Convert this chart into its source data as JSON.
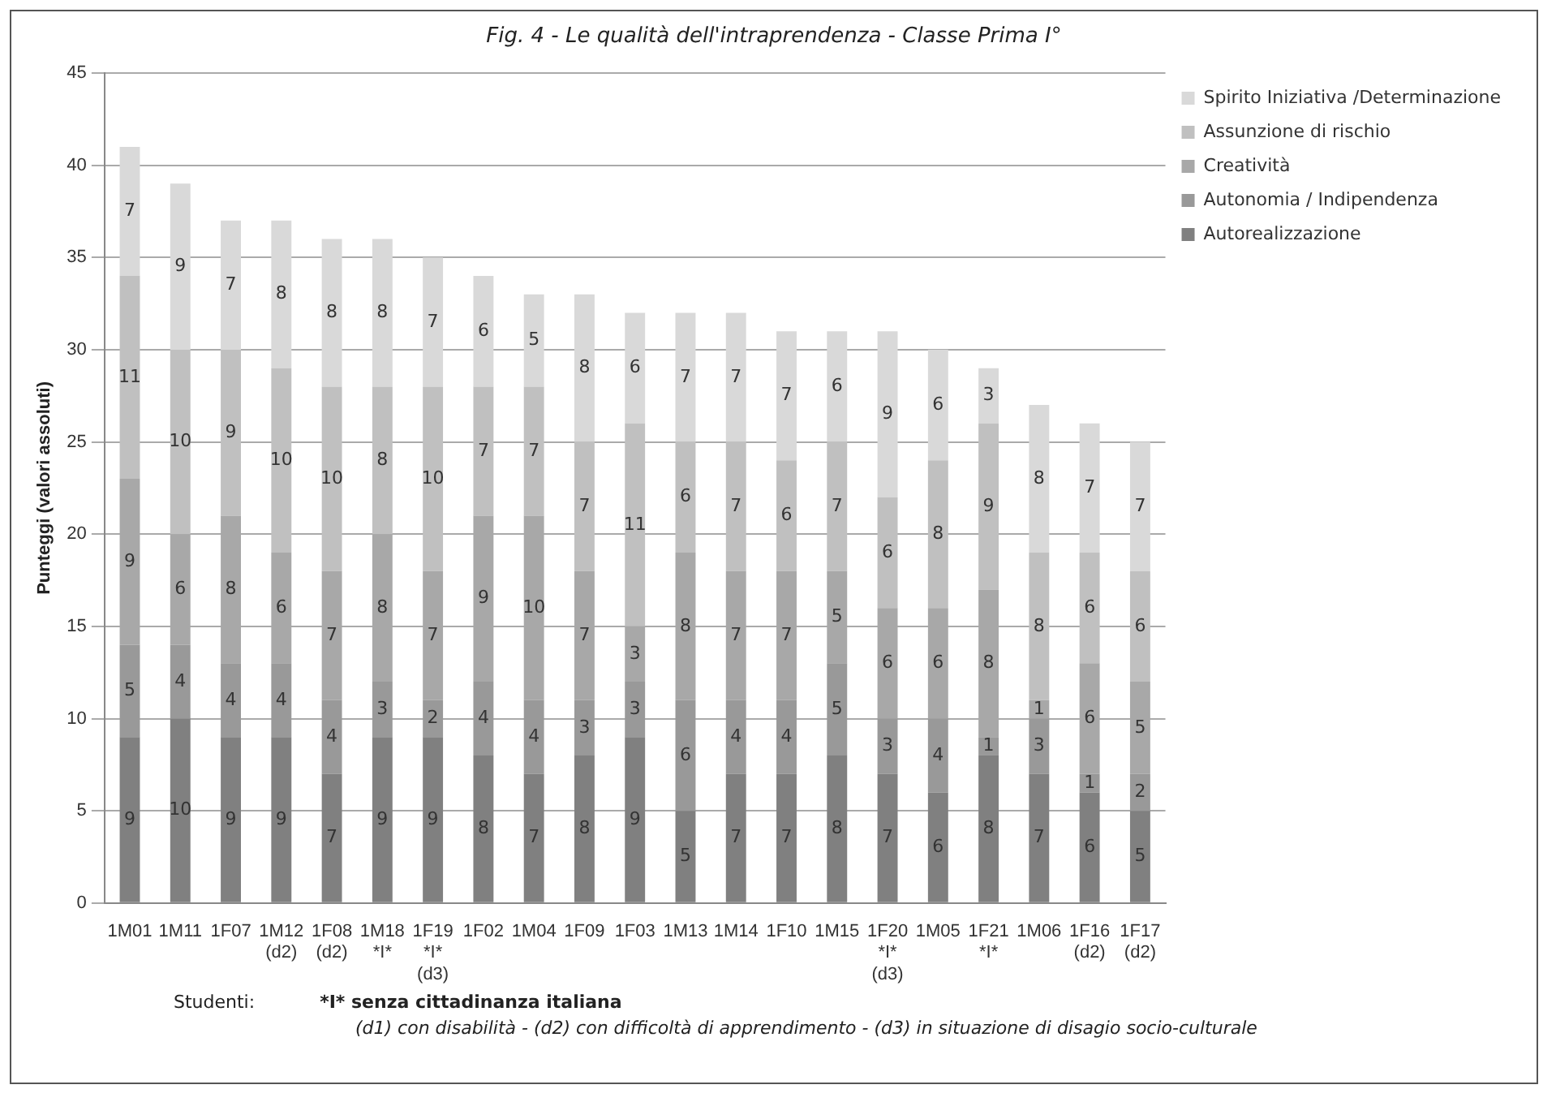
{
  "chart_data": {
    "type": "bar",
    "stacked": true,
    "title": "Fig. 4 - Le qualità dell'intraprendenza  - Classe Prima I°",
    "ylabel": "Punteggi (valori assoluti)",
    "categories": [
      "1M01",
      "1M11",
      "1F07",
      "1M12\n(d2)",
      "1F08\n(d2)",
      "1M18\n*I*",
      "1F19\n*I*\n(d3)",
      "1F02",
      "1M04",
      "1F09",
      "1F03",
      "1M13",
      "1M14",
      "1F10",
      "1M15",
      "1F20\n*I*\n(d3)",
      "1M05",
      "1F21\n*I*",
      "1M06",
      "1F16\n(d2)",
      "1F17\n(d2)"
    ],
    "series": [
      {
        "name": "Autorealizzazione",
        "color": "#808080",
        "values": [
          9,
          10,
          9,
          9,
          7,
          9,
          9,
          8,
          7,
          8,
          9,
          5,
          7,
          7,
          8,
          7,
          6,
          8,
          7,
          6,
          5
        ]
      },
      {
        "name": "Autonomia / Indipendenza",
        "color": "#999999",
        "values": [
          5,
          4,
          4,
          4,
          4,
          3,
          2,
          4,
          4,
          3,
          3,
          6,
          4,
          4,
          5,
          3,
          4,
          1,
          3,
          1,
          2
        ]
      },
      {
        "name": "Creatività",
        "color": "#a8a8a8",
        "values": [
          9,
          6,
          8,
          6,
          7,
          8,
          7,
          9,
          10,
          7,
          3,
          8,
          7,
          7,
          5,
          6,
          6,
          8,
          1,
          6,
          5
        ]
      },
      {
        "name": "Assunzione di rischio",
        "color": "#c0c0c0",
        "values": [
          11,
          10,
          9,
          10,
          10,
          8,
          10,
          7,
          7,
          7,
          11,
          6,
          7,
          6,
          7,
          6,
          8,
          9,
          8,
          6,
          6
        ]
      },
      {
        "name": "Spirito Iniziativa /Determinazione",
        "color": "#d9d9d9",
        "values": [
          7,
          9,
          7,
          8,
          8,
          8,
          7,
          6,
          5,
          8,
          6,
          7,
          7,
          7,
          6,
          9,
          6,
          3,
          8,
          7,
          7
        ]
      }
    ],
    "ylim": [
      0,
      45
    ],
    "yticks": [
      0,
      5,
      10,
      15,
      20,
      25,
      30,
      35,
      40,
      45
    ],
    "grid": "y",
    "legend": "top right",
    "data_labels": true,
    "annotations": [
      "Studenti:",
      "*I* senza cittadinanza italiana",
      "(d1) con disabilità - (d2) con difficoltà di apprendimento - (d3) in situazione di disagio socio-culturale"
    ]
  }
}
